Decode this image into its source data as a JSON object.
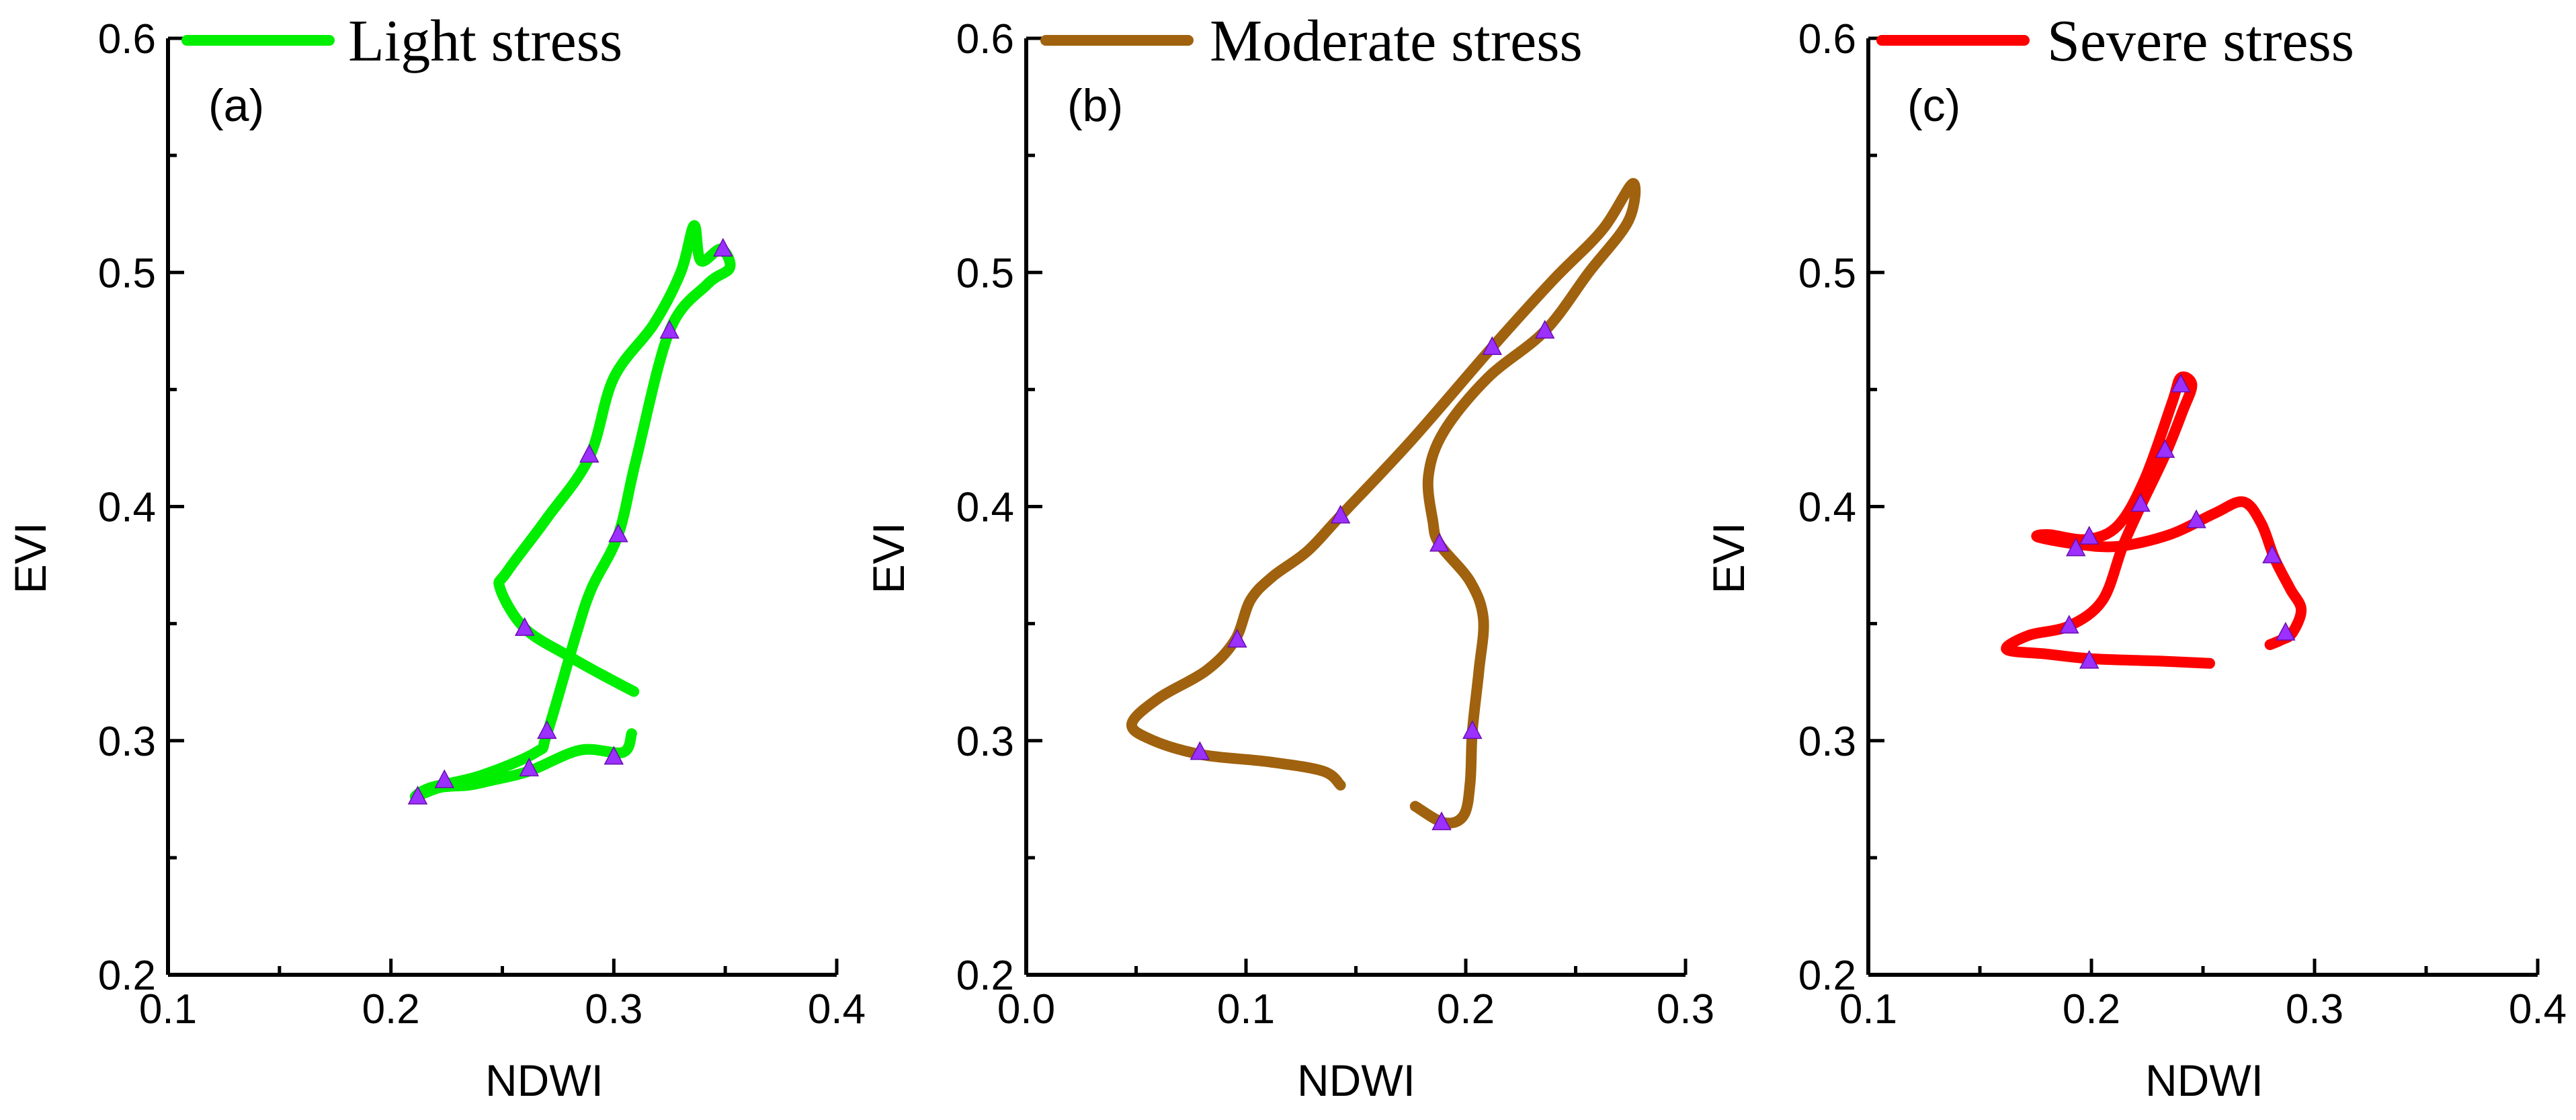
{
  "chart_data": [
    {
      "type": "line",
      "panel_label": "(a)",
      "xlabel": "NDWI",
      "ylabel": "EVI",
      "xlim": [
        0.1,
        0.4
      ],
      "ylim": [
        0.2,
        0.6
      ],
      "xticks": [
        "0.1",
        "0.2",
        "0.3",
        "0.4"
      ],
      "yticks": [
        "0.2",
        "0.3",
        "0.4",
        "0.5",
        "0.6"
      ],
      "grid": false,
      "legend_position": "top",
      "series": [
        {
          "name": "Light stress",
          "color": "#00ee00",
          "points": [
            [
              0.308,
              0.303
            ],
            [
              0.304,
              0.295
            ],
            [
              0.285,
              0.296
            ],
            [
              0.262,
              0.287
            ],
            [
              0.245,
              0.283
            ],
            [
              0.235,
              0.281
            ],
            [
              0.222,
              0.28
            ],
            [
              0.211,
              0.276
            ],
            [
              0.218,
              0.28
            ],
            [
              0.24,
              0.285
            ],
            [
              0.265,
              0.295
            ],
            [
              0.27,
              0.303
            ],
            [
              0.283,
              0.345
            ],
            [
              0.29,
              0.365
            ],
            [
              0.302,
              0.388
            ],
            [
              0.31,
              0.42
            ],
            [
              0.325,
              0.475
            ],
            [
              0.342,
              0.495
            ],
            [
              0.352,
              0.502
            ],
            [
              0.348,
              0.51
            ],
            [
              0.339,
              0.505
            ],
            [
              0.336,
              0.52
            ],
            [
              0.33,
              0.5
            ],
            [
              0.318,
              0.478
            ],
            [
              0.3,
              0.455
            ],
            [
              0.289,
              0.421
            ],
            [
              0.27,
              0.395
            ],
            [
              0.252,
              0.372
            ],
            [
              0.249,
              0.365
            ],
            [
              0.26,
              0.348
            ],
            [
              0.28,
              0.336
            ],
            [
              0.295,
              0.328
            ],
            [
              0.309,
              0.321
            ]
          ],
          "markers": [
            [
              0.349,
              0.51
            ],
            [
              0.325,
              0.475
            ],
            [
              0.289,
              0.422
            ],
            [
              0.302,
              0.388
            ],
            [
              0.26,
              0.348
            ],
            [
              0.27,
              0.304
            ],
            [
              0.3,
              0.293
            ],
            [
              0.262,
              0.288
            ],
            [
              0.224,
              0.283
            ],
            [
              0.212,
              0.276
            ]
          ]
        }
      ]
    },
    {
      "type": "line",
      "panel_label": "(b)",
      "xlabel": "NDWI",
      "ylabel": "EVI",
      "xlim": [
        0.0,
        0.3
      ],
      "ylim": [
        0.2,
        0.6
      ],
      "xticks": [
        "0.0",
        "0.1",
        "0.2",
        "0.3"
      ],
      "yticks": [
        "0.2",
        "0.3",
        "0.4",
        "0.5",
        "0.6"
      ],
      "grid": false,
      "legend_position": "top",
      "series": [
        {
          "name": "Moderate stress",
          "color": "#a0620e",
          "points": [
            [
              0.143,
              0.281
            ],
            [
              0.135,
              0.287
            ],
            [
              0.11,
              0.291
            ],
            [
              0.08,
              0.294
            ],
            [
              0.058,
              0.3
            ],
            [
              0.048,
              0.307
            ],
            [
              0.06,
              0.318
            ],
            [
              0.082,
              0.33
            ],
            [
              0.095,
              0.343
            ],
            [
              0.102,
              0.36
            ],
            [
              0.112,
              0.37
            ],
            [
              0.128,
              0.381
            ],
            [
              0.143,
              0.396
            ],
            [
              0.175,
              0.428
            ],
            [
              0.212,
              0.468
            ],
            [
              0.24,
              0.497
            ],
            [
              0.262,
              0.518
            ],
            [
              0.276,
              0.538
            ],
            [
              0.274,
              0.522
            ],
            [
              0.256,
              0.5
            ],
            [
              0.236,
              0.475
            ],
            [
              0.21,
              0.455
            ],
            [
              0.19,
              0.432
            ],
            [
              0.183,
              0.413
            ],
            [
              0.185,
              0.394
            ],
            [
              0.188,
              0.384
            ],
            [
              0.202,
              0.368
            ],
            [
              0.208,
              0.352
            ],
            [
              0.206,
              0.33
            ],
            [
              0.203,
              0.304
            ],
            [
              0.202,
              0.282
            ],
            [
              0.199,
              0.268
            ],
            [
              0.19,
              0.265
            ],
            [
              0.177,
              0.272
            ]
          ],
          "markers": [
            [
              0.079,
              0.295
            ],
            [
              0.096,
              0.343
            ],
            [
              0.143,
              0.396
            ],
            [
              0.212,
              0.468
            ],
            [
              0.236,
              0.475
            ],
            [
              0.188,
              0.384
            ],
            [
              0.203,
              0.304
            ],
            [
              0.189,
              0.265
            ]
          ]
        }
      ]
    },
    {
      "type": "line",
      "panel_label": "(c)",
      "xlabel": "NDWI",
      "ylabel": "EVI",
      "xlim": [
        0.1,
        0.4
      ],
      "ylim": [
        0.2,
        0.6
      ],
      "xticks": [
        "0.1",
        "0.2",
        "0.3",
        "0.4"
      ],
      "yticks": [
        "0.2",
        "0.3",
        "0.4",
        "0.5",
        "0.6"
      ],
      "grid": false,
      "legend_position": "top",
      "series": [
        {
          "name": "Severe stress",
          "color": "#ff0000",
          "points": [
            [
              0.253,
              0.333
            ],
            [
              0.23,
              0.334
            ],
            [
              0.2,
              0.335
            ],
            [
              0.18,
              0.337
            ],
            [
              0.162,
              0.339
            ],
            [
              0.172,
              0.345
            ],
            [
              0.19,
              0.349
            ],
            [
              0.205,
              0.36
            ],
            [
              0.214,
              0.383
            ],
            [
              0.222,
              0.4
            ],
            [
              0.233,
              0.422
            ],
            [
              0.241,
              0.441
            ],
            [
              0.245,
              0.452
            ],
            [
              0.24,
              0.455
            ],
            [
              0.236,
              0.444
            ],
            [
              0.224,
              0.412
            ],
            [
              0.212,
              0.392
            ],
            [
              0.198,
              0.386
            ],
            [
              0.181,
              0.388
            ],
            [
              0.176,
              0.387
            ],
            [
              0.193,
              0.384
            ],
            [
              0.212,
              0.383
            ],
            [
              0.235,
              0.388
            ],
            [
              0.255,
              0.397
            ],
            [
              0.268,
              0.402
            ],
            [
              0.276,
              0.393
            ],
            [
              0.282,
              0.378
            ],
            [
              0.289,
              0.365
            ],
            [
              0.294,
              0.356
            ],
            [
              0.29,
              0.346
            ],
            [
              0.285,
              0.343
            ],
            [
              0.28,
              0.341
            ]
          ],
          "markers": [
            [
              0.24,
              0.452
            ],
            [
              0.233,
              0.424
            ],
            [
              0.222,
              0.401
            ],
            [
              0.199,
              0.387
            ],
            [
              0.193,
              0.382
            ],
            [
              0.247,
              0.394
            ],
            [
              0.281,
              0.379
            ],
            [
              0.287,
              0.346
            ],
            [
              0.19,
              0.349
            ],
            [
              0.199,
              0.334
            ]
          ]
        }
      ]
    }
  ]
}
